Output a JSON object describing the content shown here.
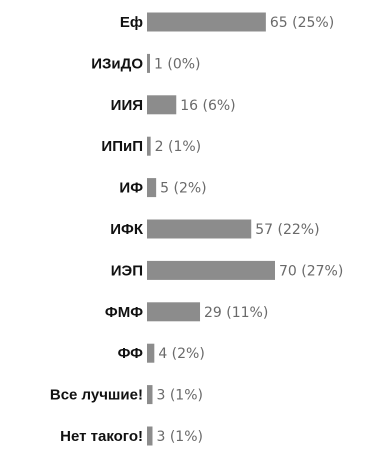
{
  "chart_data": {
    "type": "bar",
    "orientation": "horizontal",
    "categories": [
      "Еф",
      "ИЗиДО",
      "ИИЯ",
      "ИПиП",
      "ИФ",
      "ИФК",
      "ИЭП",
      "ФМФ",
      "ФФ",
      "Все лучшие!",
      "Нет такого!"
    ],
    "values": [
      65,
      1,
      16,
      2,
      5,
      57,
      70,
      29,
      4,
      3,
      3
    ],
    "value_labels": [
      "65 (25%)",
      "1 (0%)",
      "16 (6%)",
      "2 (1%)",
      "5 (2%)",
      "57 (22%)",
      "70 (27%)",
      "29 (11%)",
      "4 (2%)",
      "3 (1%)",
      "3 (1%)"
    ],
    "title": "",
    "xlabel": "",
    "ylabel": "",
    "bar_color": "#8c8c8c"
  }
}
